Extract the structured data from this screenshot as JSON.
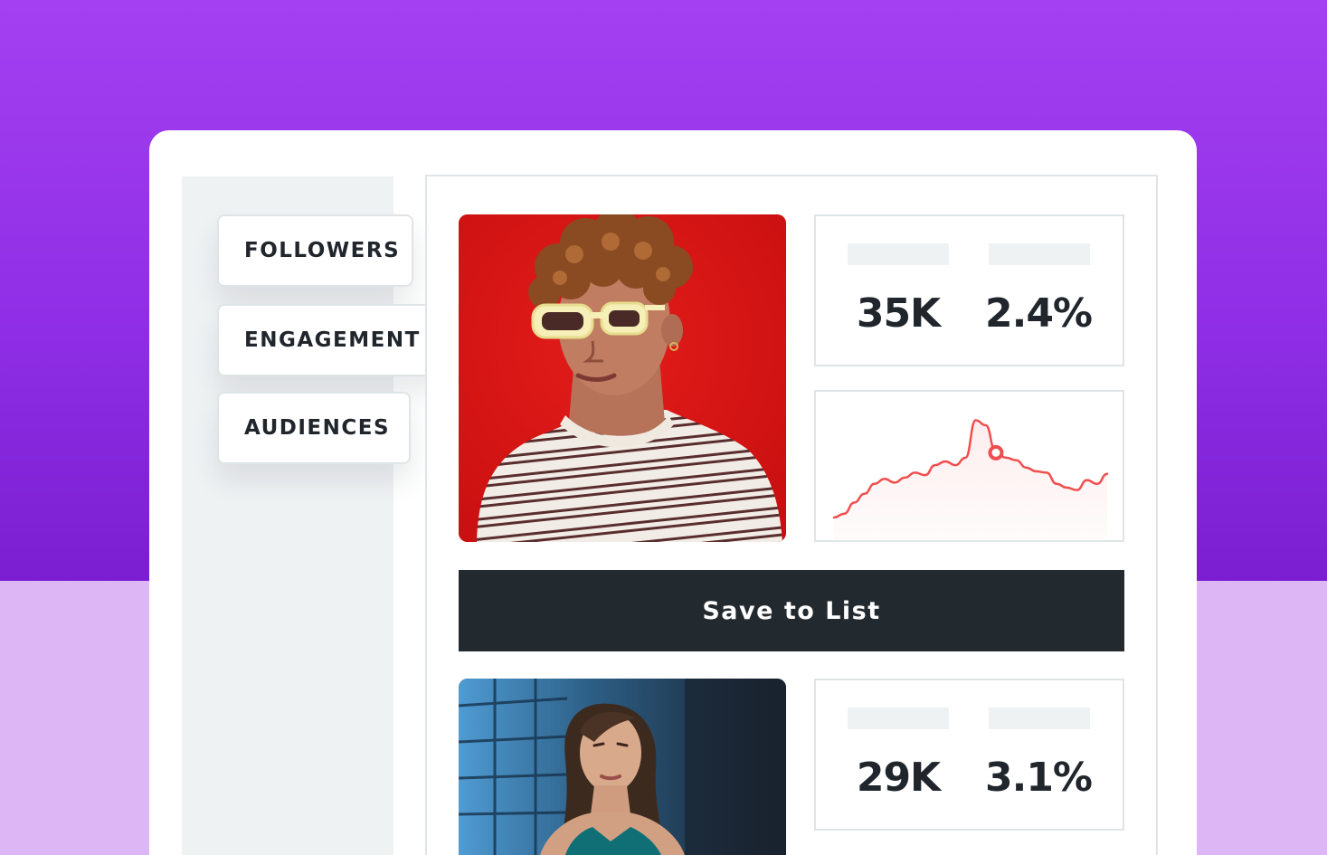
{
  "filters": {
    "followers": "FOLLOWERS",
    "engagement": "ENGAGEMENT",
    "audiences": "AUDIENCES"
  },
  "profiles": [
    {
      "followers": "35K",
      "engagement_rate": "2.4%"
    },
    {
      "followers": "29K",
      "engagement_rate": "3.1%"
    }
  ],
  "actions": {
    "save_to_list": "Save to List"
  },
  "colors": {
    "background_top": "#9a35ec",
    "background_bottom": "#dcb6f5",
    "button": "#22292f",
    "chart_line": "#f04e4e"
  },
  "icons": {
    "chart_marker": "ring-marker"
  },
  "chart_data": {
    "type": "line",
    "values": [
      8,
      11,
      20,
      27,
      35,
      39,
      36,
      40,
      44,
      42,
      50,
      53,
      50,
      56,
      86,
      82,
      60,
      56,
      54,
      48,
      45,
      44,
      35,
      32,
      30,
      38,
      35,
      43
    ],
    "highlight_index": 16
  }
}
